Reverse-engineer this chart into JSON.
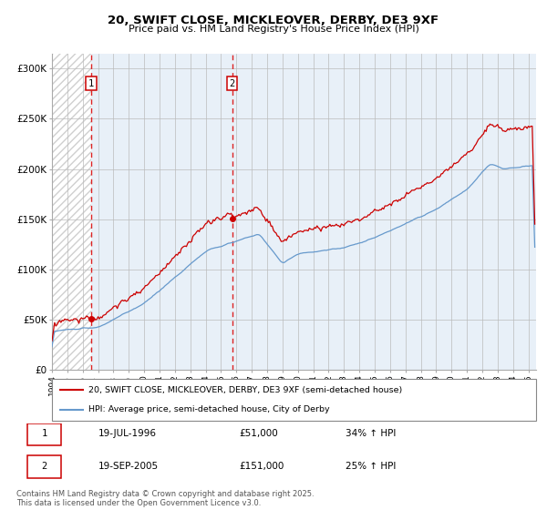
{
  "title": "20, SWIFT CLOSE, MICKLEOVER, DERBY, DE3 9XF",
  "subtitle": "Price paid vs. HM Land Registry's House Price Index (HPI)",
  "ylabel_ticks": [
    "£0",
    "£50K",
    "£100K",
    "£150K",
    "£200K",
    "£250K",
    "£300K"
  ],
  "ytick_values": [
    0,
    50000,
    100000,
    150000,
    200000,
    250000,
    300000
  ],
  "ylim": [
    0,
    315000
  ],
  "xlim_start": 1994.0,
  "xlim_end": 2025.5,
  "purchase1_date": 1996.54,
  "purchase1_price": 51000,
  "purchase1_label": "1",
  "purchase2_date": 2005.72,
  "purchase2_price": 151000,
  "purchase2_label": "2",
  "color_line1": "#cc0000",
  "color_line2": "#6699cc",
  "color_grid": "#cccccc",
  "color_dashed": "#dd2222",
  "legend1_text": "20, SWIFT CLOSE, MICKLEOVER, DERBY, DE3 9XF (semi-detached house)",
  "legend2_text": "HPI: Average price, semi-detached house, City of Derby",
  "table_row1": [
    "1",
    "19-JUL-1996",
    "£51,000",
    "34% ↑ HPI"
  ],
  "table_row2": [
    "2",
    "19-SEP-2005",
    "£151,000",
    "25% ↑ HPI"
  ],
  "footnote": "Contains HM Land Registry data © Crown copyright and database right 2025.\nThis data is licensed under the Open Government Licence v3.0.",
  "plot_bg_color": "#e8f0f8"
}
